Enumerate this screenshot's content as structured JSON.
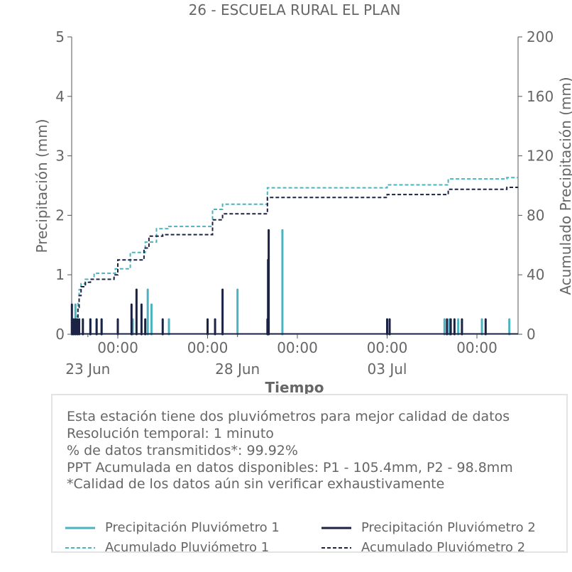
{
  "chart_data": {
    "type": "line",
    "title": "26 - ESCUELA RURAL EL PLAN",
    "xlabel": "Tiempo",
    "ylabel_left": "Precipitación (mm)",
    "ylabel_right": "Acumulado Precipitación (mm)",
    "ylim_left": [
      0,
      5
    ],
    "ylim_right": [
      0,
      200
    ],
    "yticks_left": [
      0,
      1,
      2,
      3,
      4,
      5
    ],
    "yticks_right": [
      0,
      40,
      80,
      120,
      160,
      200
    ],
    "xlim": [
      "2025-06-22T11:00",
      "2025-07-07T09:00"
    ],
    "x_major_ticks": [
      {
        "x": "2025-06-24T00:00",
        "label": "00:00"
      },
      {
        "x": "2025-06-27T00:00",
        "label": "00:00"
      },
      {
        "x": "2025-06-30T00:00",
        "label": "00:00"
      },
      {
        "x": "2025-07-03T00:00",
        "label": "00:00"
      },
      {
        "x": "2025-07-06T00:00",
        "label": "00:00"
      }
    ],
    "x_date_labels": [
      {
        "x": "2025-06-23T00:00",
        "label": "23 Jun"
      },
      {
        "x": "2025-06-28T00:00",
        "label": "28 Jun"
      },
      {
        "x": "2025-07-03T00:00",
        "label": "03 Jul"
      }
    ],
    "grid": false,
    "series": [
      {
        "name": "Precipitación Pluviómetro 1",
        "axis": "left",
        "style": "solid",
        "color": "#4bb3c0",
        "spikes": [
          {
            "x": "2025-06-22T11:10",
            "y": 0.25
          },
          {
            "x": "2025-06-22T12:30",
            "y": 0.25
          },
          {
            "x": "2025-06-22T14:00",
            "y": 0.5
          },
          {
            "x": "2025-06-22T15:30",
            "y": 0.25
          },
          {
            "x": "2025-06-22T17:00",
            "y": 0.25
          },
          {
            "x": "2025-06-23T02:00",
            "y": 0.25
          },
          {
            "x": "2025-06-23T07:00",
            "y": 0.25
          },
          {
            "x": "2025-06-23T11:00",
            "y": 0.25
          },
          {
            "x": "2025-06-24T12:00",
            "y": 0.25
          },
          {
            "x": "2025-06-25T00:00",
            "y": 0.75
          },
          {
            "x": "2025-06-25T03:00",
            "y": 0.5
          },
          {
            "x": "2025-06-25T17:00",
            "y": 0.25
          },
          {
            "x": "2025-06-28T00:00",
            "y": 0.75
          },
          {
            "x": "2025-06-29T12:00",
            "y": 1.75
          },
          {
            "x": "2025-07-03T00:00",
            "y": 0.25
          },
          {
            "x": "2025-07-04T22:00",
            "y": 0.25
          },
          {
            "x": "2025-07-05T02:00",
            "y": 0.25
          },
          {
            "x": "2025-07-05T09:00",
            "y": 0.25
          },
          {
            "x": "2025-07-06T04:00",
            "y": 0.25
          },
          {
            "x": "2025-07-07T02:00",
            "y": 0.25
          }
        ]
      },
      {
        "name": "Precipitación Pluviómetro 2",
        "axis": "left",
        "style": "solid",
        "color": "#1c2244",
        "spikes": [
          {
            "x": "2025-06-22T11:10",
            "y": 0.5
          },
          {
            "x": "2025-06-22T12:30",
            "y": 0.25
          },
          {
            "x": "2025-06-22T14:00",
            "y": 0.25
          },
          {
            "x": "2025-06-22T15:30",
            "y": 0.25
          },
          {
            "x": "2025-06-22T17:00",
            "y": 0.25
          },
          {
            "x": "2025-06-22T20:00",
            "y": 0.25
          },
          {
            "x": "2025-06-23T02:00",
            "y": 0.25
          },
          {
            "x": "2025-06-23T07:00",
            "y": 0.25
          },
          {
            "x": "2025-06-23T11:00",
            "y": 0.25
          },
          {
            "x": "2025-06-24T00:00",
            "y": 0.25
          },
          {
            "x": "2025-06-24T11:00",
            "y": 0.5
          },
          {
            "x": "2025-06-24T15:00",
            "y": 0.75
          },
          {
            "x": "2025-06-24T19:00",
            "y": 0.5
          },
          {
            "x": "2025-06-24T22:00",
            "y": 0.25
          },
          {
            "x": "2025-06-25T12:00",
            "y": 0.25
          },
          {
            "x": "2025-06-27T00:00",
            "y": 0.25
          },
          {
            "x": "2025-06-27T06:00",
            "y": 0.25
          },
          {
            "x": "2025-06-27T12:00",
            "y": 0.75
          },
          {
            "x": "2025-06-29T00:00",
            "y": 0.25
          },
          {
            "x": "2025-06-29T00:30",
            "y": 1.25
          },
          {
            "x": "2025-06-29T01:00",
            "y": 1.75
          },
          {
            "x": "2025-07-03T00:00",
            "y": 0.25
          },
          {
            "x": "2025-07-03T02:00",
            "y": 0.25
          },
          {
            "x": "2025-07-05T00:00",
            "y": 0.25
          },
          {
            "x": "2025-07-05T03:00",
            "y": 0.25
          },
          {
            "x": "2025-07-05T06:00",
            "y": 0.25
          },
          {
            "x": "2025-07-05T12:00",
            "y": 0.25
          },
          {
            "x": "2025-07-06T07:00",
            "y": 0.25
          }
        ]
      },
      {
        "name": "Acumulado Pluviómetro 1",
        "axis": "right",
        "style": "dashed",
        "color": "#4bb3c0",
        "steps": [
          {
            "x": "2025-06-22T11:00",
            "y": 0
          },
          {
            "x": "2025-06-22T13:00",
            "y": 5
          },
          {
            "x": "2025-06-22T15:00",
            "y": 12
          },
          {
            "x": "2025-06-22T16:00",
            "y": 22
          },
          {
            "x": "2025-06-22T17:00",
            "y": 30
          },
          {
            "x": "2025-06-22T18:30",
            "y": 34
          },
          {
            "x": "2025-06-22T22:00",
            "y": 37
          },
          {
            "x": "2025-06-23T05:00",
            "y": 41
          },
          {
            "x": "2025-06-23T22:00",
            "y": 44
          },
          {
            "x": "2025-06-24T10:00",
            "y": 55
          },
          {
            "x": "2025-06-24T22:00",
            "y": 62
          },
          {
            "x": "2025-06-25T07:00",
            "y": 71
          },
          {
            "x": "2025-06-25T17:00",
            "y": 72.5
          },
          {
            "x": "2025-06-27T04:00",
            "y": 84
          },
          {
            "x": "2025-06-27T12:00",
            "y": 87.5
          },
          {
            "x": "2025-06-29T00:00",
            "y": 98.5
          },
          {
            "x": "2025-07-03T00:00",
            "y": 100.5
          },
          {
            "x": "2025-07-05T01:00",
            "y": 104.5
          },
          {
            "x": "2025-07-07T00:00",
            "y": 105.4
          }
        ]
      },
      {
        "name": "Acumulado Pluviómetro 2",
        "axis": "right",
        "style": "dashed",
        "color": "#1c2244",
        "steps": [
          {
            "x": "2025-06-22T11:00",
            "y": 0
          },
          {
            "x": "2025-06-22T13:00",
            "y": 4
          },
          {
            "x": "2025-06-22T15:00",
            "y": 10
          },
          {
            "x": "2025-06-22T16:00",
            "y": 18
          },
          {
            "x": "2025-06-22T17:00",
            "y": 26
          },
          {
            "x": "2025-06-22T18:30",
            "y": 32
          },
          {
            "x": "2025-06-22T22:00",
            "y": 35
          },
          {
            "x": "2025-06-23T02:00",
            "y": 37
          },
          {
            "x": "2025-06-23T21:00",
            "y": 40
          },
          {
            "x": "2025-06-24T00:00",
            "y": 50
          },
          {
            "x": "2025-06-24T21:00",
            "y": 58
          },
          {
            "x": "2025-06-25T01:00",
            "y": 66
          },
          {
            "x": "2025-06-25T12:00",
            "y": 67
          },
          {
            "x": "2025-06-27T04:00",
            "y": 77
          },
          {
            "x": "2025-06-27T12:00",
            "y": 81
          },
          {
            "x": "2025-06-29T00:00",
            "y": 92
          },
          {
            "x": "2025-07-03T00:00",
            "y": 94
          },
          {
            "x": "2025-07-05T01:00",
            "y": 97.5
          },
          {
            "x": "2025-07-07T00:00",
            "y": 98.8
          }
        ]
      }
    ]
  },
  "info": {
    "lines": [
      "Esta estación tiene dos pluviómetros para mejor calidad de datos",
      "Resolución temporal: 1 minuto",
      "% de datos transmitidos*: 99.92%",
      "PPT Acumulada en datos disponibles: P1 - 105.4mm, P2 - 98.8mm",
      "*Calidad de los datos aún sin verificar exhaustivamente"
    ]
  },
  "legend": {
    "items": [
      {
        "label": "Precipitación Pluviómetro 1",
        "color": "#4bb3c0",
        "style": "solid"
      },
      {
        "label": "Precipitación Pluviómetro 2",
        "color": "#1c2244",
        "style": "solid"
      },
      {
        "label": "Acumulado Pluviómetro 1",
        "color": "#4bb3c0",
        "style": "dashed"
      },
      {
        "label": "Acumulado Pluviómetro 2",
        "color": "#1c2244",
        "style": "dashed"
      }
    ]
  }
}
